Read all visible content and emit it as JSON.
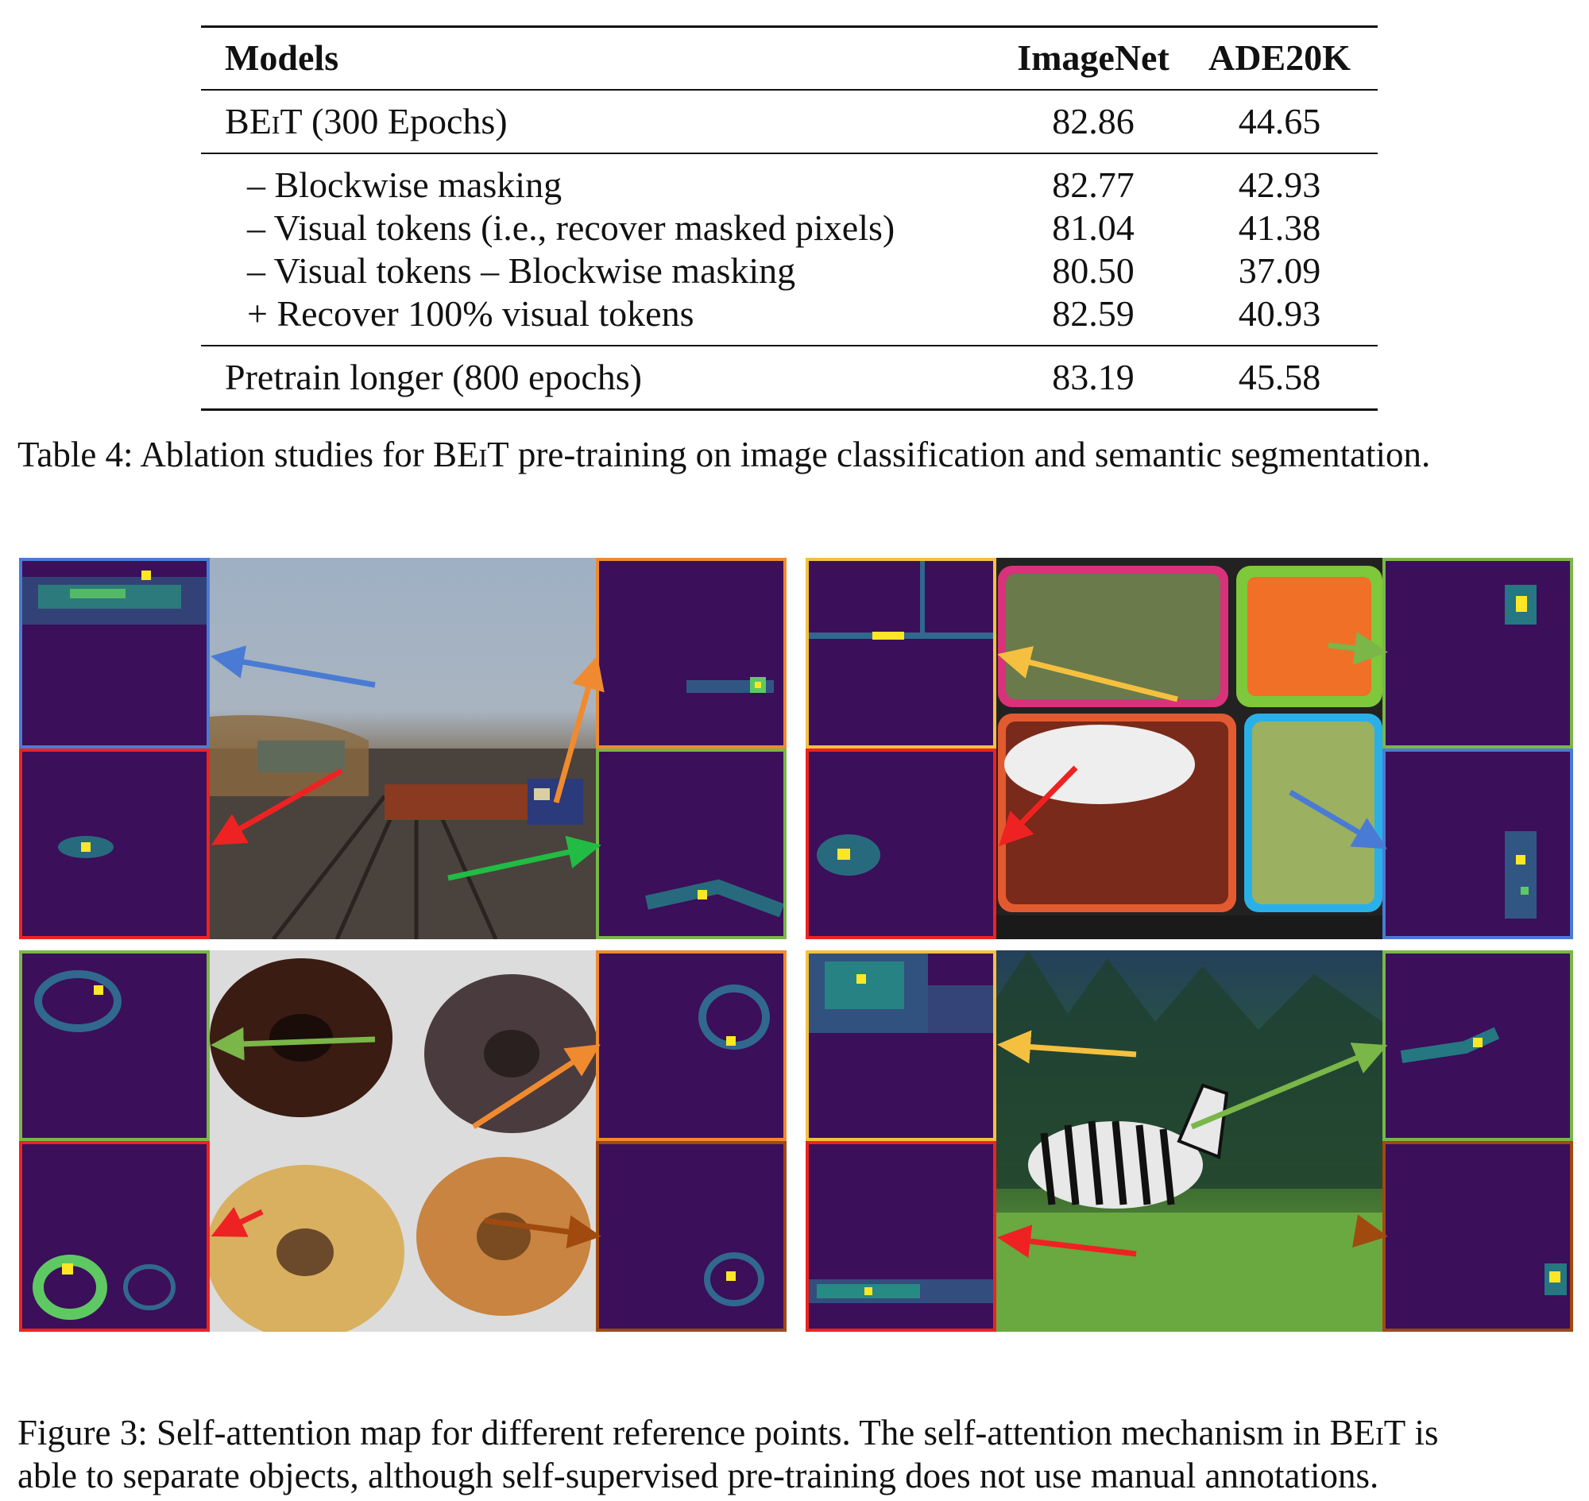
{
  "table": {
    "headers": [
      "Models",
      "ImageNet",
      "ADE20K"
    ],
    "baseline": {
      "name_prefix": "B",
      "name_sc": "EiT",
      "name_suffix": " (300 Epochs)",
      "imagenet": "82.86",
      "ade20k": "44.65"
    },
    "ablations": [
      {
        "label": "– Blockwise masking",
        "imagenet": "82.77",
        "ade20k": "42.93"
      },
      {
        "label": "– Visual tokens (i.e., recover masked pixels)",
        "imagenet": "81.04",
        "ade20k": "41.38"
      },
      {
        "label": "– Visual tokens – Blockwise masking",
        "imagenet": "80.50",
        "ade20k": "37.09"
      },
      {
        "label": "+ Recover 100% visual tokens",
        "imagenet": "82.59",
        "ade20k": "40.93"
      }
    ],
    "longer": {
      "label": "Pretrain longer (800 epochs)",
      "imagenet": "83.19",
      "ade20k": "45.58"
    },
    "caption_prefix": "Table 4: Ablation studies for B",
    "caption_sc": "EiT",
    "caption_suffix": " pre-training on image classification and semantic segmentation."
  },
  "figure": {
    "caption_line1_prefix": "Figure 3:   Self-attention map for different reference points. The self-attention mechanism in B",
    "caption_line1_sc": "EiT",
    "caption_line1_suffix": " is",
    "caption_line2": "able to separate objects, although self-supervised pre-training does not use manual annotations.",
    "panels": [
      {
        "scene": "train"
      },
      {
        "scene": "lunchbox"
      },
      {
        "scene": "donuts"
      },
      {
        "scene": "zebra"
      }
    ],
    "colors": {
      "viridis_bg": "#3b0f5a",
      "blue": "#4a7bd4",
      "red": "#ee2222",
      "orange": "#f08a30",
      "green": "#22bb44",
      "yellow_green": "#7ab648",
      "yellow": "#f5c040",
      "brown": "#a04a10"
    }
  }
}
